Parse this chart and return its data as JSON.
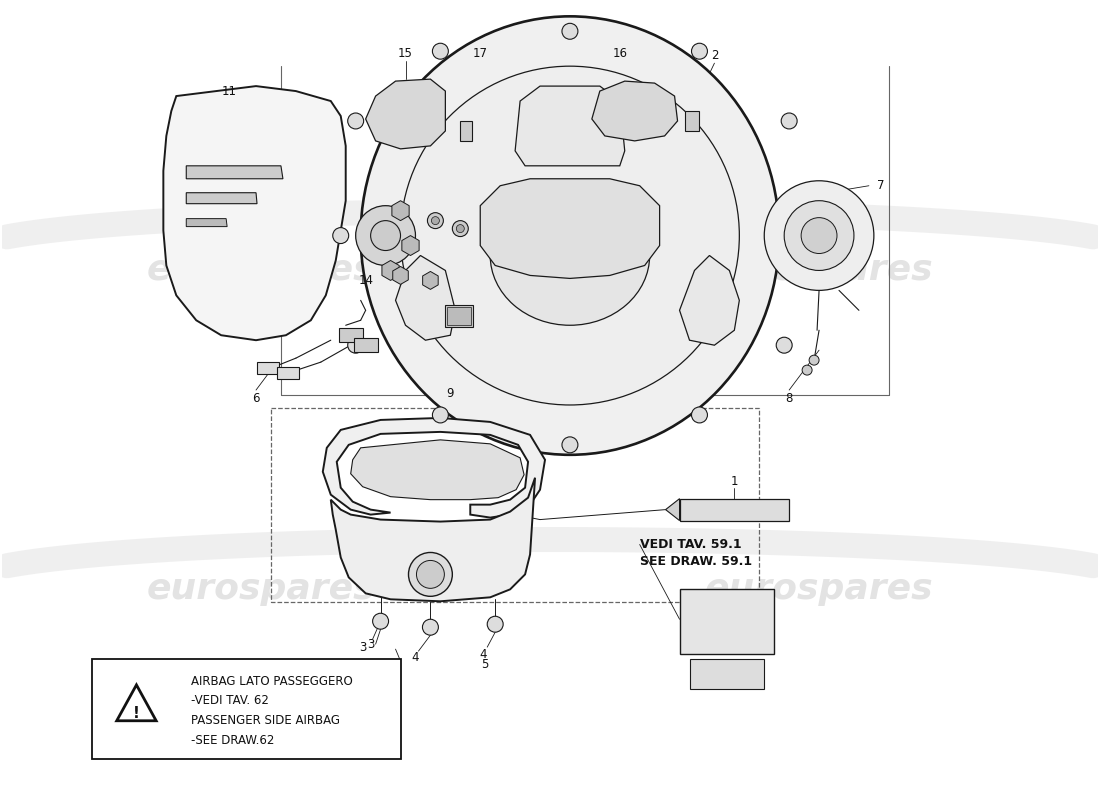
{
  "bg_color": "#ffffff",
  "watermark_color": "#cccccc",
  "watermark_text": "eurospares",
  "warning_text": [
    "AIRBAG LATO PASSEGGERO",
    "-VEDI TAV. 62",
    "PASSENGER SIDE AIRBAG",
    "-SEE DRAW.62"
  ],
  "vedi_text": [
    "VEDI TAV. 59.1",
    "SEE DRAW. 59.1"
  ]
}
